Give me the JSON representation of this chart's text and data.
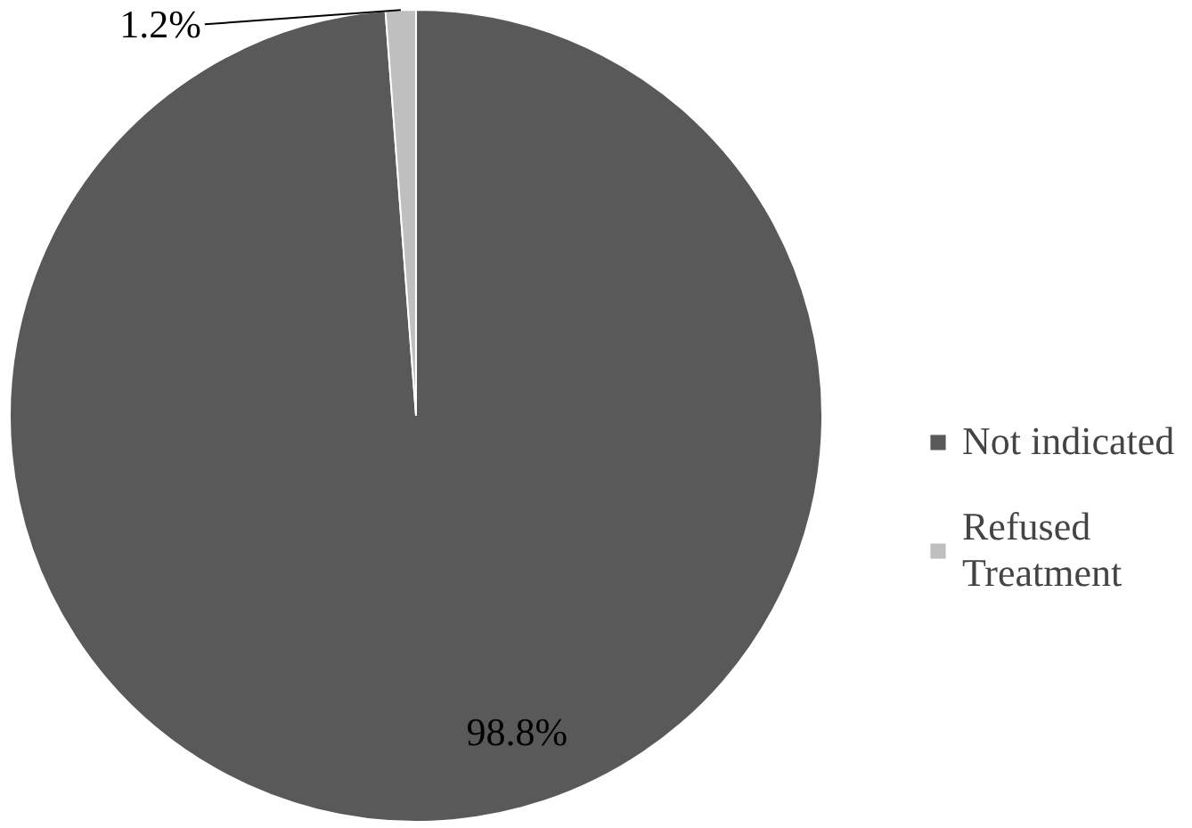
{
  "chart_data": {
    "type": "pie",
    "categories": [
      "Not indicated",
      "Refused Treatment"
    ],
    "values": [
      98.8,
      1.2
    ],
    "colors": [
      "#595959",
      "#bfbfbf"
    ],
    "value_labels": [
      "98.8%",
      "1.2%"
    ],
    "legend": "right"
  }
}
